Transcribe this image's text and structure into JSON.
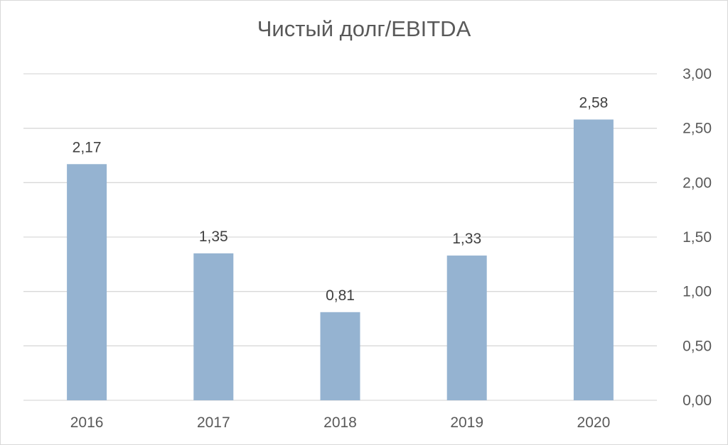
{
  "chart_data": {
    "type": "bar",
    "title": "Чистый долг/EBITDA",
    "categories": [
      "2016",
      "2017",
      "2018",
      "2019",
      "2020"
    ],
    "values": [
      2.17,
      1.35,
      0.81,
      1.33,
      2.58
    ],
    "data_labels": [
      "2,17",
      "1,35",
      "0,81",
      "1,33",
      "2,58"
    ],
    "y_ticks": [
      "0,00",
      "0,50",
      "1,00",
      "1,50",
      "2,00",
      "2,50",
      "3,00"
    ],
    "y_tick_values": [
      0,
      0.5,
      1,
      1.5,
      2,
      2.5,
      3
    ],
    "ylim": [
      0,
      3
    ],
    "y_axis_side": "right",
    "grid": true,
    "legend": "none",
    "bar_color": "#95b3d1",
    "grid_color": "#d9d9d9",
    "text_color": "#595959"
  }
}
